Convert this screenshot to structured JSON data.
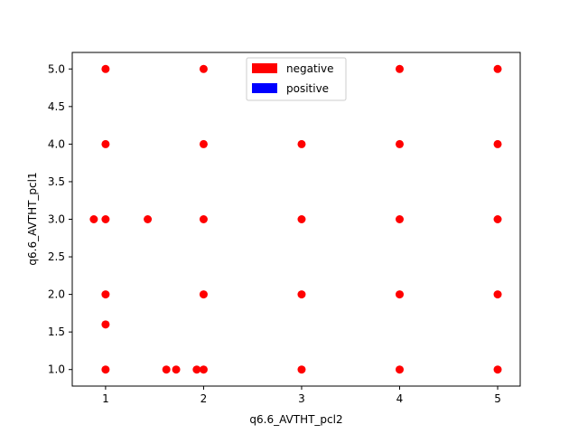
{
  "chart_data": {
    "type": "scatter",
    "title": "",
    "xlabel": "q6.6_AVTHT_pcl2",
    "ylabel": "q6.6_AVTHT_pcl1",
    "xlim": [
      0.66,
      5.23
    ],
    "ylim": [
      0.78,
      5.22
    ],
    "xticks": [
      1,
      2,
      3,
      4,
      5
    ],
    "yticks": [
      1.0,
      1.5,
      2.0,
      2.5,
      3.0,
      3.5,
      4.0,
      4.5,
      5.0
    ],
    "ytick_labels": [
      "1.0",
      "1.5",
      "2.0",
      "2.5",
      "3.0",
      "3.5",
      "4.0",
      "4.5",
      "5.0"
    ],
    "xtick_labels": [
      "1",
      "2",
      "3",
      "4",
      "5"
    ],
    "grid": false,
    "legend": {
      "placement": "upper center",
      "entries": [
        {
          "label": "negative",
          "color": "#ff0000"
        },
        {
          "label": "positive",
          "color": "#0000ff"
        }
      ]
    },
    "series": [
      {
        "name": "negative",
        "color": "#ff0000",
        "points": [
          [
            1,
            5
          ],
          [
            2,
            5
          ],
          [
            4,
            5
          ],
          [
            5,
            5
          ],
          [
            1,
            4
          ],
          [
            2,
            4
          ],
          [
            3,
            4
          ],
          [
            4,
            4
          ],
          [
            5,
            4
          ],
          [
            0.88,
            3
          ],
          [
            1,
            3
          ],
          [
            1.43,
            3
          ],
          [
            2,
            3
          ],
          [
            3,
            3
          ],
          [
            4,
            3
          ],
          [
            5,
            3
          ],
          [
            1,
            2
          ],
          [
            2,
            2
          ],
          [
            3,
            2
          ],
          [
            4,
            2
          ],
          [
            5,
            2
          ],
          [
            1,
            1.6
          ],
          [
            1,
            1
          ],
          [
            1.62,
            1
          ],
          [
            1.72,
            1
          ],
          [
            1.93,
            1
          ],
          [
            2,
            1
          ],
          [
            3,
            1
          ],
          [
            4,
            1
          ],
          [
            5,
            1
          ]
        ]
      }
    ]
  }
}
